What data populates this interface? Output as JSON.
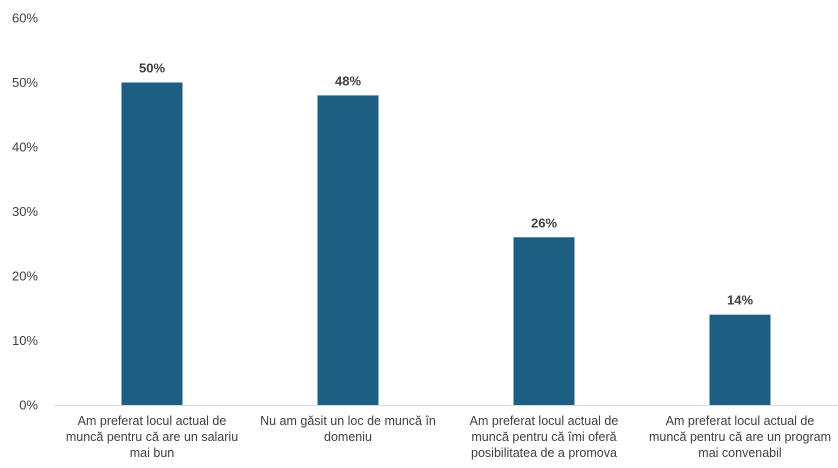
{
  "chart_data": {
    "type": "bar",
    "categories": [
      "Am preferat locul actual de muncă pentru că are un salariu mai bun",
      "Nu am găsit un loc de muncă în domeniu",
      "Am preferat locul actual de muncă pentru că îmi oferă posibilitatea de a promova",
      "Am preferat locul actual de muncă pentru că are un program mai convenabil"
    ],
    "values": [
      50,
      48,
      26,
      14
    ],
    "data_labels": [
      "50%",
      "48%",
      "26%",
      "14%"
    ],
    "y_ticks": [
      "0%",
      "10%",
      "20%",
      "30%",
      "40%",
      "50%",
      "60%"
    ],
    "ylim": [
      0,
      60
    ],
    "title": "",
    "xlabel": "",
    "ylabel": "",
    "grid": false,
    "legend": "none",
    "bar_color": "#1b5e82",
    "baseline_color": "#d9d9d9"
  }
}
